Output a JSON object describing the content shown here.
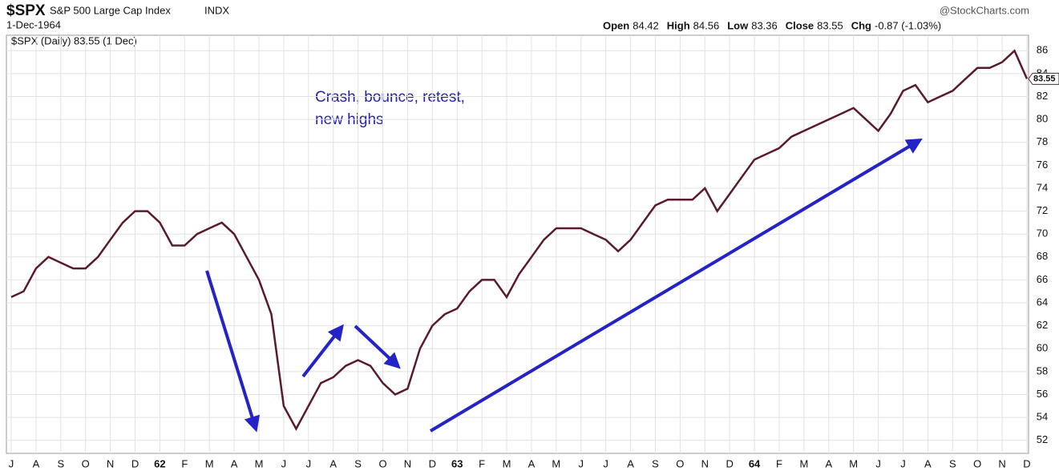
{
  "header": {
    "symbol": "$SPX",
    "name": "S&P 500 Large Cap Index",
    "exchange": "INDX",
    "date": "1-Dec-1964",
    "source": "@StockCharts.com",
    "quote": [
      {
        "label": "Open",
        "value": "84.42"
      },
      {
        "label": "High",
        "value": "84.56"
      },
      {
        "label": "Low",
        "value": "83.36"
      },
      {
        "label": "Close",
        "value": "83.55"
      },
      {
        "label": "Chg",
        "value": "-0.87 (-1.03%)"
      }
    ]
  },
  "chart_data": {
    "type": "line",
    "legend": "$SPX (Daily) 83.55 (1 Dec)",
    "annotation": [
      "Crash, bounce, retest,",
      "new highs"
    ],
    "color": "#5a1a2a",
    "grid": true,
    "categories": [
      "J",
      null,
      "A",
      null,
      "S",
      null,
      "O",
      null,
      "N",
      null,
      "D",
      null,
      "62",
      null,
      "F",
      null,
      "M",
      null,
      "A",
      null,
      "M",
      null,
      "J",
      null,
      "J",
      null,
      "A",
      null,
      "S",
      null,
      "O",
      null,
      "N",
      null,
      "D",
      null,
      "63",
      null,
      "F",
      null,
      "M",
      null,
      "A",
      null,
      "M",
      null,
      "J",
      null,
      "J",
      null,
      "A",
      null,
      "S",
      null,
      "O",
      null,
      "N",
      null,
      "D",
      null,
      "64",
      null,
      "F",
      null,
      "M",
      null,
      "A",
      null,
      "M",
      null,
      "J",
      null,
      "J",
      null,
      "A",
      null,
      "S",
      null,
      "O",
      null,
      "N",
      null,
      "D"
    ],
    "values": [
      64.5,
      65,
      67,
      68,
      67.5,
      67,
      67,
      68,
      69.5,
      71,
      72,
      72,
      71,
      69,
      69,
      70,
      70.5,
      71,
      70,
      68,
      66,
      63,
      55,
      53,
      55,
      57,
      57.5,
      58.5,
      59,
      58.5,
      57,
      56,
      56.5,
      60,
      62,
      63,
      63.5,
      65,
      66,
      66,
      64.5,
      66.5,
      68,
      69.5,
      70.5,
      70.5,
      70.5,
      70,
      69.5,
      68.5,
      69.5,
      71,
      72.5,
      73,
      73,
      73,
      74,
      72,
      73.5,
      75,
      76.5,
      77,
      77.5,
      78.5,
      79,
      79.5,
      80,
      80.5,
      81,
      80,
      79,
      80.5,
      82.5,
      83,
      81.5,
      82,
      82.5,
      83.5,
      84.5,
      84.5,
      85,
      86,
      83.55
    ],
    "ylim": [
      51,
      87
    ],
    "yticks": [
      52,
      54,
      56,
      58,
      60,
      62,
      64,
      66,
      68,
      70,
      72,
      74,
      76,
      78,
      80,
      82,
      84,
      86
    ]
  }
}
